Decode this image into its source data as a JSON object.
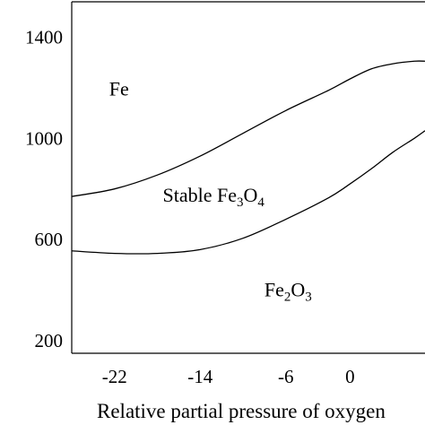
{
  "chart_data": {
    "type": "line",
    "title": "",
    "xlabel": "Relative partial pressure of oxygen",
    "ylabel": "",
    "xlim": [
      -26,
      7
    ],
    "ylim": [
      150,
      1540
    ],
    "x_ticks": [
      -22,
      -14,
      -6,
      0
    ],
    "y_ticks": [
      1400,
      1000,
      600,
      200
    ],
    "grid": false,
    "series": [
      {
        "x": [
          -26,
          -22,
          -18,
          -14,
          -10,
          -6,
          -2,
          0,
          2,
          4,
          6,
          7
        ],
        "y": [
          770,
          800,
          855,
          930,
          1020,
          1110,
          1190,
          1235,
          1275,
          1295,
          1305,
          1305
        ]
      },
      {
        "x": [
          -26,
          -22,
          -18,
          -14,
          -10,
          -6,
          -2,
          0,
          2,
          4,
          6,
          7
        ],
        "y": [
          555,
          545,
          545,
          560,
          605,
          680,
          765,
          820,
          880,
          945,
          1000,
          1030
        ]
      }
    ],
    "regions": [
      {
        "label": "Fe",
        "x": -22.5,
        "y": 1170
      },
      {
        "label": "Stable Fe",
        "sub": "3",
        "label2": "O",
        "sub2": "4",
        "x": -17.5,
        "y": 750
      },
      {
        "label": "Fe",
        "sub": "2",
        "label2": "O",
        "sub2": "3",
        "x": -8,
        "y": 375
      }
    ]
  }
}
